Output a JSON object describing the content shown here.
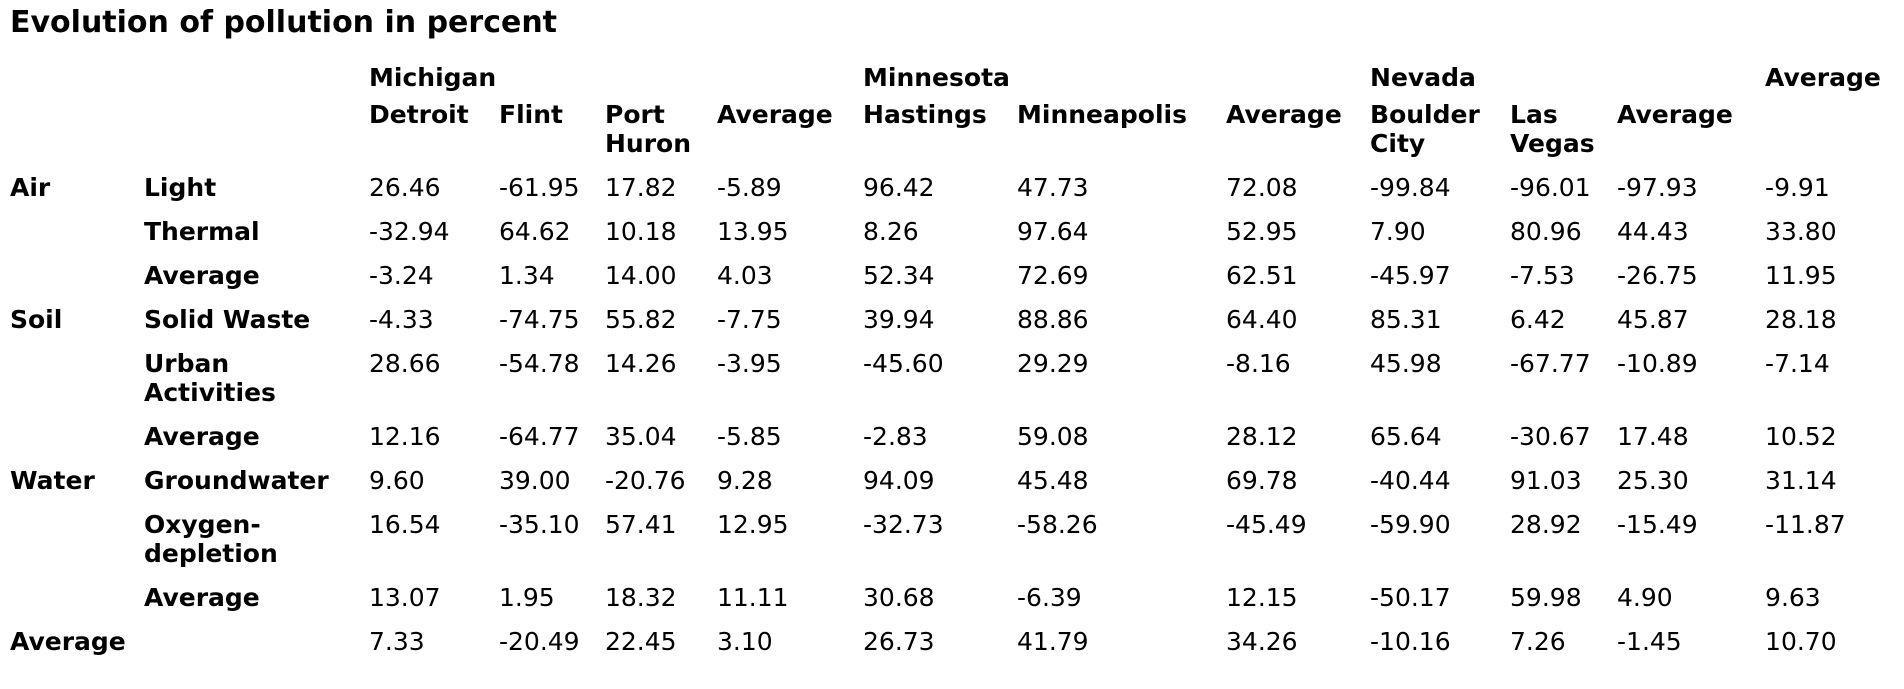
{
  "title": "Evolution of pollution in percent",
  "chart_data": {
    "type": "table",
    "title": "Evolution of pollution in percent",
    "unit": "percent",
    "column_groups": [
      {
        "label": "Michigan",
        "columns": [
          "Detroit",
          "Flint",
          "Port Huron",
          "Average"
        ]
      },
      {
        "label": "Minnesota",
        "columns": [
          "Hastings",
          "Minneapolis",
          "Average"
        ]
      },
      {
        "label": "Nevada",
        "columns": [
          "Boulder City",
          "Las Vegas",
          "Average"
        ]
      },
      {
        "label": "Average",
        "columns": [
          ""
        ]
      }
    ],
    "rows": [
      {
        "category": "Air",
        "metric": "Light",
        "values": [
          "26.46",
          "-61.95",
          "17.82",
          "-5.89",
          "96.42",
          "47.73",
          "72.08",
          "-99.84",
          "-96.01",
          "-97.93",
          "-9.91"
        ]
      },
      {
        "category": "",
        "metric": "Thermal",
        "values": [
          "-32.94",
          "64.62",
          "10.18",
          "13.95",
          "8.26",
          "97.64",
          "52.95",
          "7.90",
          "80.96",
          "44.43",
          "33.80"
        ]
      },
      {
        "category": "",
        "metric": "Average",
        "values": [
          "-3.24",
          "1.34",
          "14.00",
          "4.03",
          "52.34",
          "72.69",
          "62.51",
          "-45.97",
          "-7.53",
          "-26.75",
          "11.95"
        ]
      },
      {
        "category": "Soil",
        "metric": "Solid Waste",
        "values": [
          "-4.33",
          "-74.75",
          "55.82",
          "-7.75",
          "39.94",
          "88.86",
          "64.40",
          "85.31",
          "6.42",
          "45.87",
          "28.18"
        ]
      },
      {
        "category": "",
        "metric": "Urban Activities",
        "values": [
          "28.66",
          "-54.78",
          "14.26",
          "-3.95",
          "-45.60",
          "29.29",
          "-8.16",
          "45.98",
          "-67.77",
          "-10.89",
          "-7.14"
        ]
      },
      {
        "category": "",
        "metric": "Average",
        "values": [
          "12.16",
          "-64.77",
          "35.04",
          "-5.85",
          "-2.83",
          "59.08",
          "28.12",
          "65.64",
          "-30.67",
          "17.48",
          "10.52"
        ]
      },
      {
        "category": "Water",
        "metric": "Groundwater",
        "values": [
          "9.60",
          "39.00",
          "-20.76",
          "9.28",
          "94.09",
          "45.48",
          "69.78",
          "-40.44",
          "91.03",
          "25.30",
          "31.14"
        ]
      },
      {
        "category": "",
        "metric": "Oxygen-depletion",
        "values": [
          "16.54",
          "-35.10",
          "57.41",
          "12.95",
          "-32.73",
          "-58.26",
          "-45.49",
          "-59.90",
          "28.92",
          "-15.49",
          "-11.87"
        ]
      },
      {
        "category": "",
        "metric": "Average",
        "values": [
          "13.07",
          "1.95",
          "18.32",
          "11.11",
          "30.68",
          "-6.39",
          "12.15",
          "-50.17",
          "59.98",
          "4.90",
          "9.63"
        ]
      },
      {
        "category": "Average",
        "metric": "",
        "values": [
          "7.33",
          "-20.49",
          "22.45",
          "3.10",
          "26.73",
          "41.79",
          "34.26",
          "-10.16",
          "7.26",
          "-1.45",
          "10.70"
        ]
      }
    ]
  }
}
